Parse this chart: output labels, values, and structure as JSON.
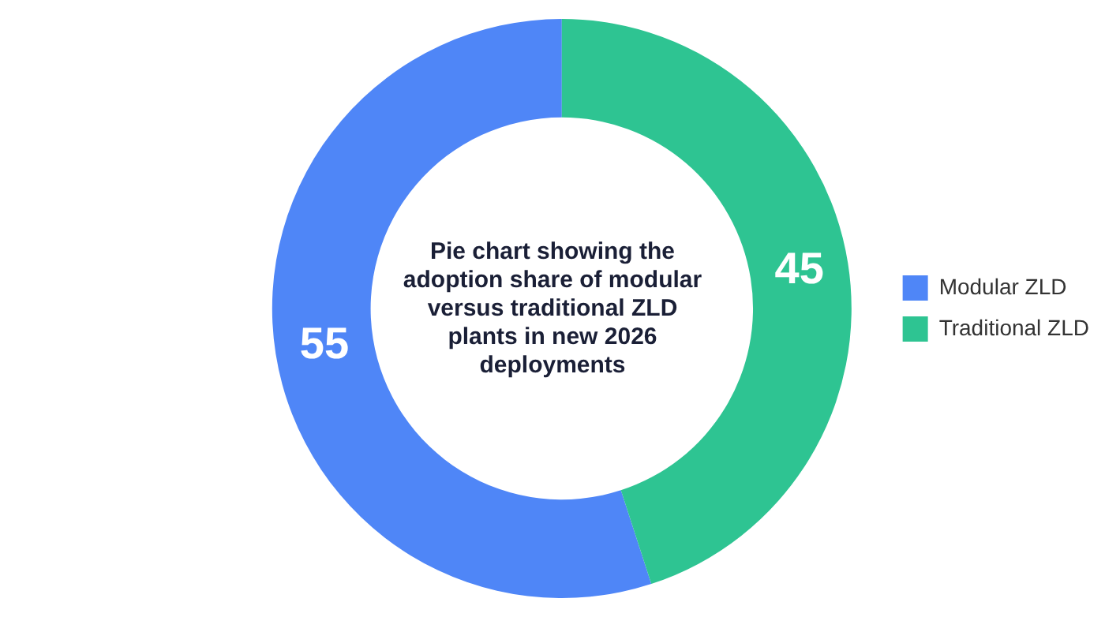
{
  "chart_data": {
    "type": "donut",
    "title": "Pie chart showing the adoption share of modular versus traditional ZLD plants in new 2026 deployments",
    "categories": [
      "Modular ZLD",
      "Traditional ZLD"
    ],
    "values": [
      55,
      45
    ],
    "colors": [
      "#4f86f7",
      "#2ec492"
    ],
    "data_labels": true,
    "legend": "right"
  }
}
